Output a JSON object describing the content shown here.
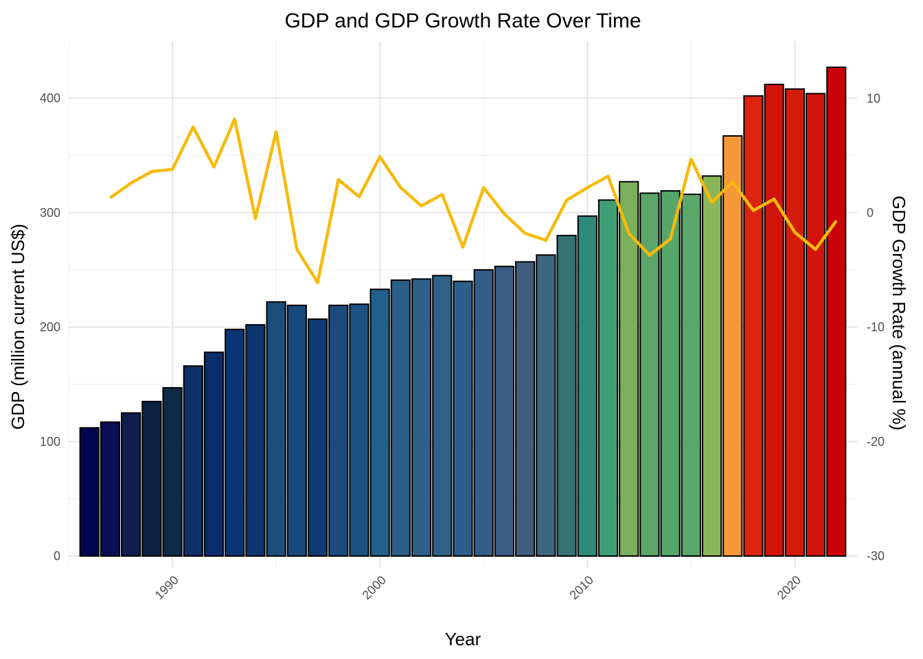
{
  "chart_data": {
    "type": "bar",
    "title": "GDP and GDP Growth Rate Over Time",
    "xlabel": "Year",
    "ylabel": "GDP (million current US$)",
    "y2label": "GDP Growth Rate (annual %)",
    "xlim": [
      1985,
      2023
    ],
    "ylim": [
      0,
      435
    ],
    "y2lim": [
      -30,
      13
    ],
    "x_ticks": [
      1990,
      2000,
      2010,
      2020
    ],
    "y_ticks": [
      0,
      100,
      200,
      300,
      400
    ],
    "y2_ticks": [
      -30,
      -20,
      -10,
      0,
      10
    ],
    "grid": true,
    "legend": "none",
    "x_tick_rotation": -45,
    "series": [
      {
        "kind": "bar",
        "x": [
          1986,
          1987,
          1988,
          1989,
          1990,
          1991,
          1992,
          1993,
          1994,
          1995,
          1996,
          1997,
          1998,
          1999,
          2000,
          2001,
          2002,
          2003,
          2004,
          2005,
          2006,
          2007,
          2008,
          2009,
          2010,
          2011,
          2012,
          2013,
          2014,
          2015,
          2016,
          2017,
          2018,
          2019,
          2020,
          2021,
          2022
        ],
        "values": [
          112,
          117,
          125,
          135,
          147,
          166,
          178,
          198,
          202,
          222,
          219,
          207,
          219,
          220,
          233,
          241,
          242,
          245,
          240,
          250,
          253,
          257,
          263,
          280,
          297,
          311,
          327,
          317,
          319,
          316,
          332,
          367,
          402,
          412,
          408,
          404,
          427
        ],
        "colors": [
          "#020550",
          "#0b0f55",
          "#111d4e",
          "#0c2242",
          "#0d2a48",
          "#0e3067",
          "#0c2d6c",
          "#0b3474",
          "#0d3670",
          "#1c4f7e",
          "#164b7c",
          "#0e3a75",
          "#1a4b7d",
          "#1e5283",
          "#20608b",
          "#2b5f88",
          "#2e608a",
          "#2f6289",
          "#2c5f8a",
          "#335e88",
          "#3b5d85",
          "#3e5e7e",
          "#3e6680",
          "#357275",
          "#2e8a78",
          "#3e9f77",
          "#7aaf5b",
          "#5da66a",
          "#57a669",
          "#5aa76b",
          "#8ab659",
          "#f59839",
          "#dc2410",
          "#d0130b",
          "#d51c0b",
          "#d1140b",
          "#ca0207"
        ]
      },
      {
        "kind": "line",
        "axis": "right",
        "color": "#f7ba0b",
        "x": [
          1987,
          1988,
          1989,
          1990,
          1991,
          1992,
          1993,
          1994,
          1995,
          1996,
          1997,
          1998,
          1999,
          2000,
          2001,
          2002,
          2003,
          2004,
          2005,
          2006,
          2007,
          2008,
          2009,
          2010,
          2011,
          2012,
          2013,
          2014,
          2015,
          2016,
          2017,
          2018,
          2019,
          2020,
          2021,
          2022
        ],
        "values": [
          1.3,
          2.6,
          3.6,
          3.8,
          7.5,
          4.0,
          8.2,
          -0.5,
          7.1,
          -3.2,
          -6.1,
          2.9,
          1.4,
          4.9,
          2.2,
          0.6,
          1.6,
          -3.0,
          2.2,
          -0.1,
          -1.8,
          -2.4,
          1.1,
          2.2,
          3.2,
          -1.8,
          -3.7,
          -2.3,
          4.7,
          0.9,
          2.7,
          0.2,
          1.2,
          -1.7,
          -3.2,
          -0.7
        ]
      }
    ]
  }
}
